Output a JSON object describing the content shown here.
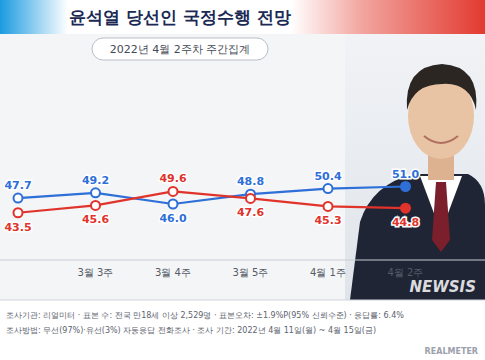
{
  "chart_data": {
    "type": "line",
    "title": "윤석열 당선인 국정수행 전망",
    "subtitle": "2022년 4월 2주차 주간집계",
    "categories": [
      null,
      "3월 3주",
      "3월 4주",
      "3월 5주",
      "4월 1주",
      "4월 2주"
    ],
    "series": [
      {
        "color": "#2e6fd8",
        "marker": "circle",
        "values": [
          47.7,
          49.2,
          46.0,
          48.8,
          50.4,
          51.0
        ],
        "value_labels": [
          "47.7",
          "49.2",
          "46.0",
          "48.8",
          "50.4",
          "51.0"
        ]
      },
      {
        "color": "#e0332b",
        "marker": "circle",
        "values": [
          43.5,
          45.6,
          49.6,
          47.6,
          45.3,
          44.8
        ],
        "value_labels": [
          "43.5",
          "45.6",
          "49.6",
          "47.6",
          "45.3",
          "44.8"
        ]
      }
    ],
    "ylim": [
      30,
      70
    ],
    "data_labels": true,
    "tick_labels": "x",
    "grid": false,
    "notes": [
      "조사기관: 리얼미터 · 표본 수: 전국 만18세 이상 2,529명 · 표본오차: ±1.9%P(95% 신뢰수준) · 응답률: 6.4%",
      "조사방법: 무선(97%)·유선(3%) 자동응답 전화조사 · 조사 기간: 2022년 4월 11일(월) ~ 4월 15일(금)"
    ],
    "watermarks": [
      "NEWSIS",
      "REALMETER"
    ]
  }
}
